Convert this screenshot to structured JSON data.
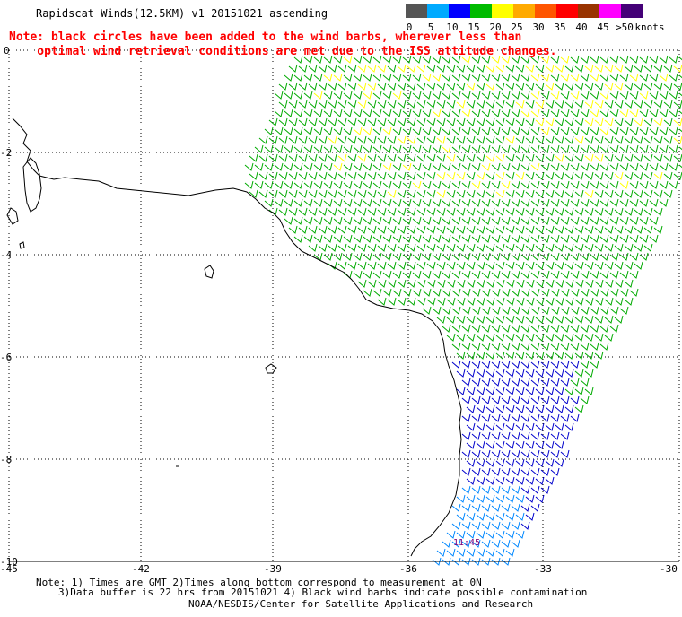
{
  "title": "Rapidscat Winds(12.5KM) v1 20151021 ascending",
  "note": {
    "line1": "Note: black circles have been added to the wind barbs, wherever less than",
    "line2": "    optimal wind retrieval conditions are met due to the ISS attitude changes."
  },
  "scale": {
    "units_label": "knots",
    "items": [
      {
        "label": "0",
        "color": "#555555"
      },
      {
        "label": "5",
        "color": "#00aaff"
      },
      {
        "label": "10",
        "color": "#0000ff"
      },
      {
        "label": "15",
        "color": "#00bb00"
      },
      {
        "label": "20",
        "color": "#ffff00"
      },
      {
        "label": "25",
        "color": "#ffaa00"
      },
      {
        "label": "30",
        "color": "#ff5500"
      },
      {
        "label": "35",
        "color": "#ff0000"
      },
      {
        "label": "40",
        "color": "#993300"
      },
      {
        "label": "45",
        "color": "#ff00ff"
      },
      {
        "label": ">50",
        "color": "#440077"
      }
    ]
  },
  "axes": {
    "longitudes": [
      "-45",
      "-42",
      "-39",
      "-36",
      "-33",
      "-30"
    ],
    "latitudes": [
      "0",
      "-2",
      "-4",
      "-6",
      "-8",
      "-10"
    ]
  },
  "timestamp": "11:45",
  "footer": {
    "line1": "Note: 1) Times are GMT 2)Times along bottom correspond to measurement at 0N",
    "line2": "3)Data buffer is 22 hrs from 20151021 4) Black wind barbs indicate possible contamination",
    "line3": "NOAA/NESDIS/Center for Satellite Applications and Research"
  },
  "colors": {
    "barb_green": "#00aa00",
    "barb_yellow": "#ffff00",
    "barb_blue": "#0000cc",
    "barb_lightblue": "#0088ff",
    "coast": "#000000",
    "grid": "#000000"
  }
}
